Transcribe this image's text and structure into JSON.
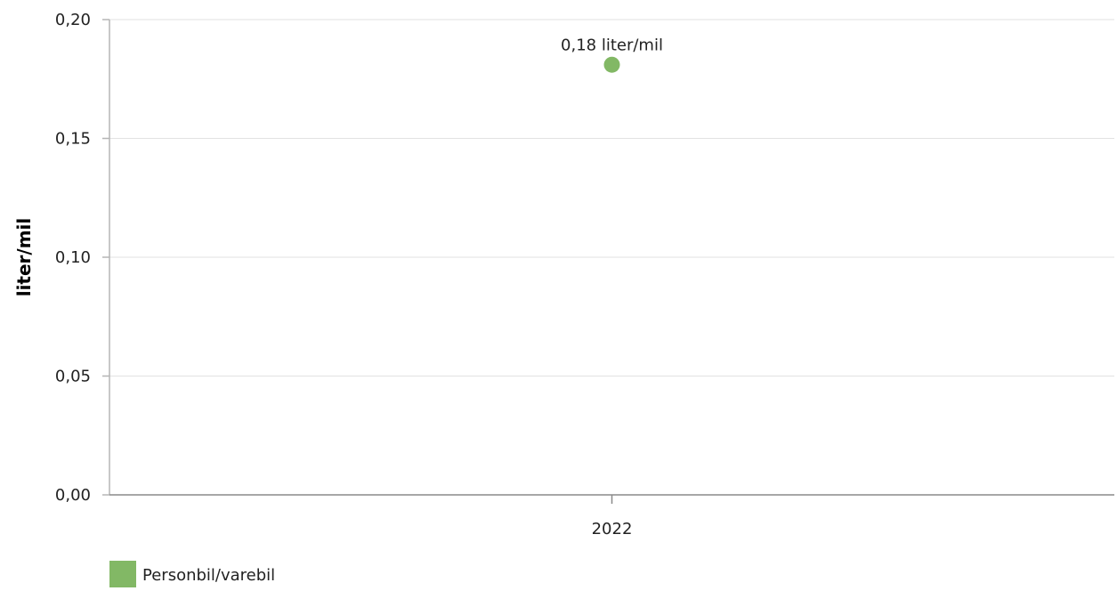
{
  "chart_data": {
    "type": "scatter",
    "categories": [
      "2022"
    ],
    "series": [
      {
        "name": "Personbil/varebil",
        "values": [
          0.181
        ],
        "data_labels": [
          "0,18 liter/mil"
        ],
        "color": "#82b865"
      }
    ],
    "ylabel": "liter/mil",
    "ylim": [
      0,
      0.2
    ],
    "y_ticks": [
      0,
      0.05,
      0.1,
      0.15,
      0.2
    ],
    "y_tick_labels": [
      "0,00",
      "0,05",
      "0,10",
      "0,15",
      "0,20"
    ],
    "grid": true,
    "legend_position": "bottom-left"
  }
}
